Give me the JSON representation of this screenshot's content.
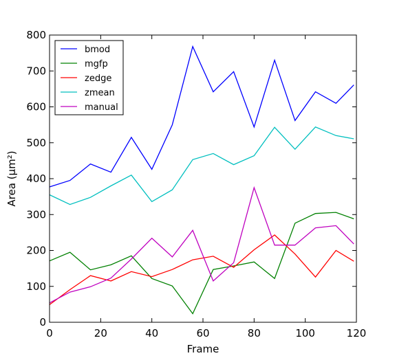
{
  "chart_data": {
    "type": "line",
    "title": "",
    "xlabel": "Frame",
    "ylabel": "Area (μm²)",
    "xlim": [
      0,
      120
    ],
    "ylim": [
      0,
      800
    ],
    "xticks": [
      "0",
      "20",
      "40",
      "60",
      "80",
      "100",
      "120"
    ],
    "yticks": [
      "0",
      "100",
      "200",
      "300",
      "400",
      "500",
      "600",
      "700",
      "800"
    ],
    "grid": false,
    "legend_position": "top-left",
    "x": [
      0,
      8,
      16,
      24,
      32,
      40,
      48,
      56,
      64,
      72,
      80,
      88,
      96,
      104,
      112,
      119
    ],
    "series": [
      {
        "name": "bmod",
        "color": "#0000ff",
        "values": [
          377,
          395,
          441,
          418,
          515,
          426,
          550,
          768,
          642,
          698,
          544,
          730,
          562,
          642,
          610,
          661
        ]
      },
      {
        "name": "mgfp",
        "color": "#008000",
        "values": [
          171,
          195,
          146,
          160,
          185,
          122,
          101,
          24,
          147,
          157,
          168,
          122,
          276,
          303,
          306,
          288
        ]
      },
      {
        "name": "zedge",
        "color": "#ff0000",
        "values": [
          49,
          91,
          130,
          115,
          141,
          127,
          147,
          174,
          184,
          153,
          202,
          243,
          190,
          126,
          200,
          170
        ]
      },
      {
        "name": "zmean",
        "color": "#00bfbf",
        "values": [
          355,
          328,
          348,
          380,
          410,
          336,
          369,
          453,
          470,
          439,
          464,
          543,
          482,
          544,
          520,
          511
        ]
      },
      {
        "name": "manual",
        "color": "#bf00bf",
        "values": [
          54,
          84,
          99,
          123,
          176,
          234,
          182,
          256,
          115,
          166,
          375,
          215,
          215,
          263,
          269,
          218
        ]
      }
    ]
  }
}
